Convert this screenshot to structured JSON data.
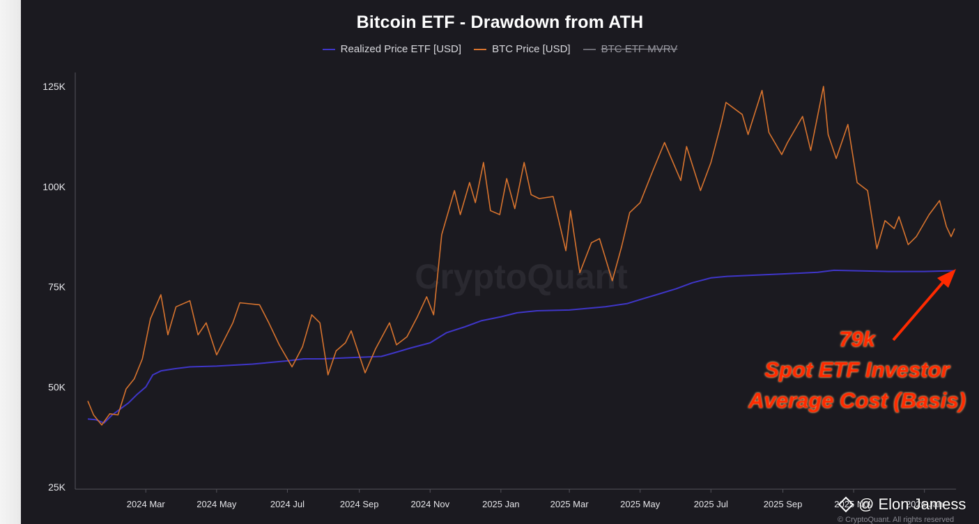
{
  "watermark": "CryptoQuant",
  "credit": {
    "author": "@ Elon Jamess",
    "copyright": "© CryptoQuant. All rights reserved"
  },
  "annotation": {
    "lines": [
      "79k",
      "Spot ETF Investor",
      "Average Cost (Basis)"
    ],
    "color": "#ff2a00"
  },
  "chart_data": {
    "type": "line",
    "title": "Bitcoin ETF - Drawdown from ATH",
    "legend": {
      "placement": "top-center"
    },
    "grid": false,
    "y_axis": {
      "ticks": [
        "125K",
        "100K",
        "75K",
        "50K",
        "25K"
      ],
      "tick_values": [
        125000,
        100000,
        75000,
        50000,
        25000
      ],
      "ylim": [
        25000,
        125000
      ]
    },
    "x_axis": {
      "ticks": [
        "2024 Mar",
        "2024 May",
        "2024 Jul",
        "2024 Sep",
        "2024 Nov",
        "2025 Jan",
        "2025 Mar",
        "2025 May",
        "2025 Jul",
        "2025 Sep",
        "2025 Nov",
        "2026 Jan"
      ],
      "tick_dates": [
        "2024-03-01",
        "2024-05-01",
        "2024-07-01",
        "2024-09-01",
        "2024-11-01",
        "2025-01-01",
        "2025-03-01",
        "2025-05-01",
        "2025-07-01",
        "2025-09-01",
        "2025-11-01",
        "2026-01-01"
      ],
      "xlim": [
        "2024-01-11",
        "2026-01-27"
      ]
    },
    "series": [
      {
        "name": "Realized Price ETF [USD]",
        "color": "#3f36c9",
        "points": [
          [
            "2024-01-11",
            42000
          ],
          [
            "2024-01-18",
            41800
          ],
          [
            "2024-01-25",
            41000
          ],
          [
            "2024-02-01",
            43000
          ],
          [
            "2024-02-08",
            44500
          ],
          [
            "2024-02-15",
            46000
          ],
          [
            "2024-02-22",
            48000
          ],
          [
            "2024-03-01",
            50000
          ],
          [
            "2024-03-07",
            53000
          ],
          [
            "2024-03-14",
            54000
          ],
          [
            "2024-03-25",
            54500
          ],
          [
            "2024-04-08",
            55000
          ],
          [
            "2024-05-01",
            55200
          ],
          [
            "2024-06-01",
            55700
          ],
          [
            "2024-07-01",
            56500
          ],
          [
            "2024-07-15",
            57000
          ],
          [
            "2024-08-01",
            57000
          ],
          [
            "2024-09-01",
            57400
          ],
          [
            "2024-09-20",
            57600
          ],
          [
            "2024-10-01",
            58500
          ],
          [
            "2024-10-15",
            59700
          ],
          [
            "2024-11-01",
            61000
          ],
          [
            "2024-11-15",
            63500
          ],
          [
            "2024-12-01",
            65000
          ],
          [
            "2024-12-15",
            66500
          ],
          [
            "2025-01-01",
            67500
          ],
          [
            "2025-01-15",
            68500
          ],
          [
            "2025-02-01",
            69000
          ],
          [
            "2025-03-01",
            69200
          ],
          [
            "2025-04-01",
            70000
          ],
          [
            "2025-04-20",
            70800
          ],
          [
            "2025-05-01",
            71800
          ],
          [
            "2025-05-15",
            73000
          ],
          [
            "2025-06-01",
            74500
          ],
          [
            "2025-06-15",
            76000
          ],
          [
            "2025-07-01",
            77200
          ],
          [
            "2025-07-15",
            77600
          ],
          [
            "2025-08-01",
            77800
          ],
          [
            "2025-09-01",
            78200
          ],
          [
            "2025-10-01",
            78600
          ],
          [
            "2025-10-15",
            79100
          ],
          [
            "2025-11-01",
            79000
          ],
          [
            "2025-12-01",
            78800
          ],
          [
            "2026-01-01",
            78800
          ],
          [
            "2026-01-27",
            79000
          ]
        ]
      },
      {
        "name": "BTC Price [USD]",
        "color": "#d9742e",
        "points": [
          [
            "2024-01-11",
            46500
          ],
          [
            "2024-01-16",
            43000
          ],
          [
            "2024-01-23",
            40500
          ],
          [
            "2024-01-30",
            43300
          ],
          [
            "2024-02-06",
            43000
          ],
          [
            "2024-02-13",
            49500
          ],
          [
            "2024-02-20",
            52000
          ],
          [
            "2024-02-27",
            57000
          ],
          [
            "2024-03-05",
            67000
          ],
          [
            "2024-03-14",
            73000
          ],
          [
            "2024-03-20",
            63000
          ],
          [
            "2024-03-27",
            70000
          ],
          [
            "2024-04-08",
            71500
          ],
          [
            "2024-04-15",
            63000
          ],
          [
            "2024-04-22",
            66000
          ],
          [
            "2024-05-01",
            58000
          ],
          [
            "2024-05-08",
            62000
          ],
          [
            "2024-05-15",
            66000
          ],
          [
            "2024-05-21",
            71000
          ],
          [
            "2024-06-07",
            70500
          ],
          [
            "2024-06-15",
            66000
          ],
          [
            "2024-06-24",
            60500
          ],
          [
            "2024-07-05",
            55000
          ],
          [
            "2024-07-14",
            60000
          ],
          [
            "2024-07-22",
            68000
          ],
          [
            "2024-07-29",
            66000
          ],
          [
            "2024-08-05",
            53000
          ],
          [
            "2024-08-12",
            59000
          ],
          [
            "2024-08-20",
            61000
          ],
          [
            "2024-08-25",
            64000
          ],
          [
            "2024-09-06",
            53500
          ],
          [
            "2024-09-15",
            59500
          ],
          [
            "2024-09-27",
            66000
          ],
          [
            "2024-10-03",
            60500
          ],
          [
            "2024-10-12",
            62500
          ],
          [
            "2024-10-21",
            67500
          ],
          [
            "2024-10-29",
            72500
          ],
          [
            "2024-11-04",
            68000
          ],
          [
            "2024-11-11",
            88000
          ],
          [
            "2024-11-22",
            99000
          ],
          [
            "2024-11-27",
            93000
          ],
          [
            "2024-12-05",
            101000
          ],
          [
            "2024-12-10",
            96000
          ],
          [
            "2024-12-17",
            106000
          ],
          [
            "2024-12-23",
            94000
          ],
          [
            "2024-12-31",
            93000
          ],
          [
            "2025-01-06",
            102000
          ],
          [
            "2025-01-13",
            94500
          ],
          [
            "2025-01-21",
            106000
          ],
          [
            "2025-01-27",
            98000
          ],
          [
            "2025-02-03",
            97000
          ],
          [
            "2025-02-15",
            97500
          ],
          [
            "2025-02-26",
            84000
          ],
          [
            "2025-03-02",
            94000
          ],
          [
            "2025-03-10",
            78500
          ],
          [
            "2025-03-20",
            86000
          ],
          [
            "2025-03-27",
            87000
          ],
          [
            "2025-04-07",
            76500
          ],
          [
            "2025-04-15",
            85000
          ],
          [
            "2025-04-22",
            93500
          ],
          [
            "2025-05-01",
            96000
          ],
          [
            "2025-05-12",
            104000
          ],
          [
            "2025-05-22",
            111000
          ],
          [
            "2025-06-05",
            101500
          ],
          [
            "2025-06-10",
            110000
          ],
          [
            "2025-06-22",
            99000
          ],
          [
            "2025-07-01",
            106000
          ],
          [
            "2025-07-10",
            116000
          ],
          [
            "2025-07-14",
            121000
          ],
          [
            "2025-07-28",
            118000
          ],
          [
            "2025-08-02",
            113000
          ],
          [
            "2025-08-14",
            124000
          ],
          [
            "2025-08-20",
            113500
          ],
          [
            "2025-08-31",
            108000
          ],
          [
            "2025-09-05",
            111000
          ],
          [
            "2025-09-18",
            117500
          ],
          [
            "2025-09-25",
            109000
          ],
          [
            "2025-10-06",
            125000
          ],
          [
            "2025-10-10",
            113000
          ],
          [
            "2025-10-17",
            107000
          ],
          [
            "2025-10-27",
            115500
          ],
          [
            "2025-11-04",
            101000
          ],
          [
            "2025-11-13",
            99000
          ],
          [
            "2025-11-21",
            84500
          ],
          [
            "2025-11-28",
            91500
          ],
          [
            "2025-12-06",
            89500
          ],
          [
            "2025-12-10",
            92500
          ],
          [
            "2025-12-18",
            85500
          ],
          [
            "2025-12-25",
            87500
          ],
          [
            "2026-01-05",
            93000
          ],
          [
            "2026-01-14",
            96500
          ],
          [
            "2026-01-20",
            90000
          ],
          [
            "2026-01-24",
            87500
          ],
          [
            "2026-01-27",
            89500
          ]
        ]
      },
      {
        "name": "BTC ETF MVRV",
        "color": "#6b6b73",
        "hidden": true,
        "points": []
      }
    ]
  }
}
